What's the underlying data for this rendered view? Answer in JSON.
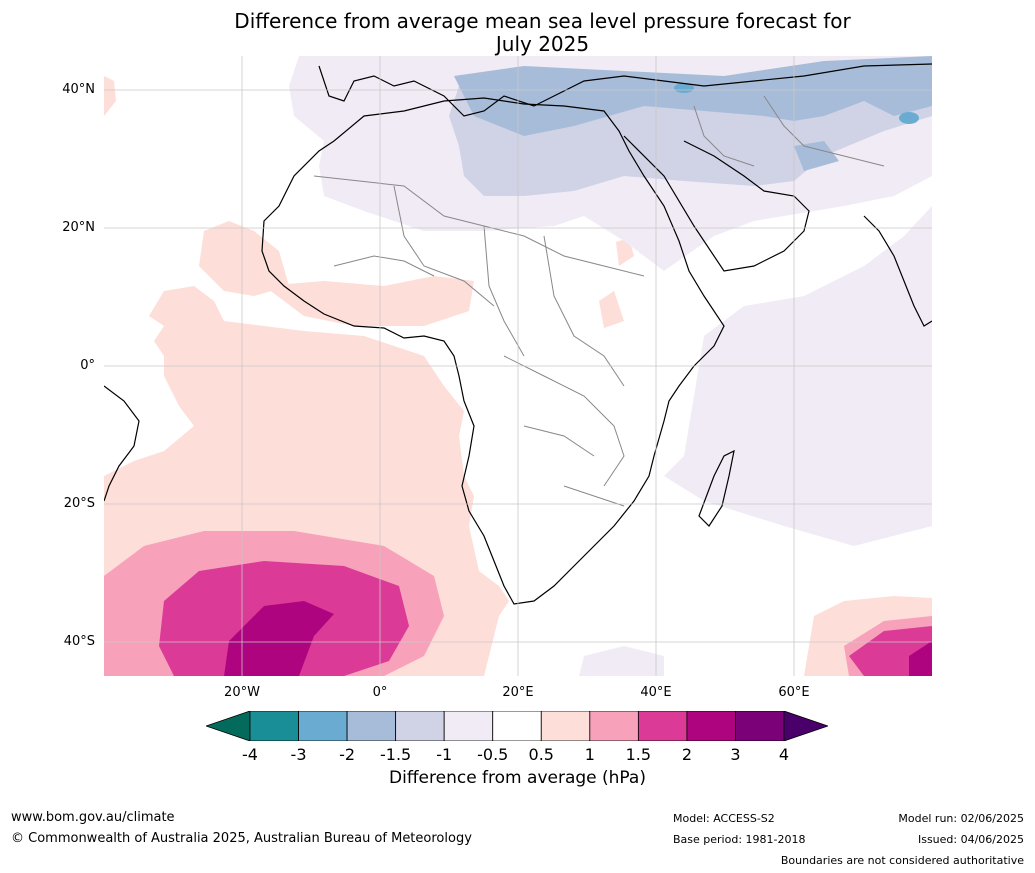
{
  "title_line1": "Difference from average mean sea level pressure forecast for",
  "title_line2": "July 2025",
  "lat_labels": [
    "40°N",
    "20°N",
    "0°",
    "20°S",
    "40°S"
  ],
  "lon_labels": [
    "20°W",
    "0°",
    "20°E",
    "40°E",
    "60°E"
  ],
  "colorbar": {
    "label": "Difference from average (hPa)",
    "ticks": [
      "-4",
      "-3",
      "-2",
      "-1.5",
      "-1",
      "-0.5",
      "0.5",
      "1",
      "1.5",
      "2",
      "3",
      "4"
    ],
    "colors": [
      "#1a8e96",
      "#6aabd2",
      "#a7bcd9",
      "#d0d2e6",
      "#f1ebf5",
      "#ffffff",
      "#fdded8",
      "#f7a1ba",
      "#dc3a97",
      "#af047f",
      "#7a0177"
    ],
    "under_color": "#036a5c",
    "over_color": "#49006a"
  },
  "footer": {
    "url": "www.bom.gov.au/climate",
    "copyright": "© Commonwealth of Australia 2025, Australian Bureau of Meteorology",
    "model": "Model: ACCESS-S2",
    "base_period": "Base period: 1981-2018",
    "model_run": "Model run: 02/06/2025",
    "issued": "Issued: 04/06/2025",
    "disclaimer": "Boundaries are not considered authoritative"
  }
}
